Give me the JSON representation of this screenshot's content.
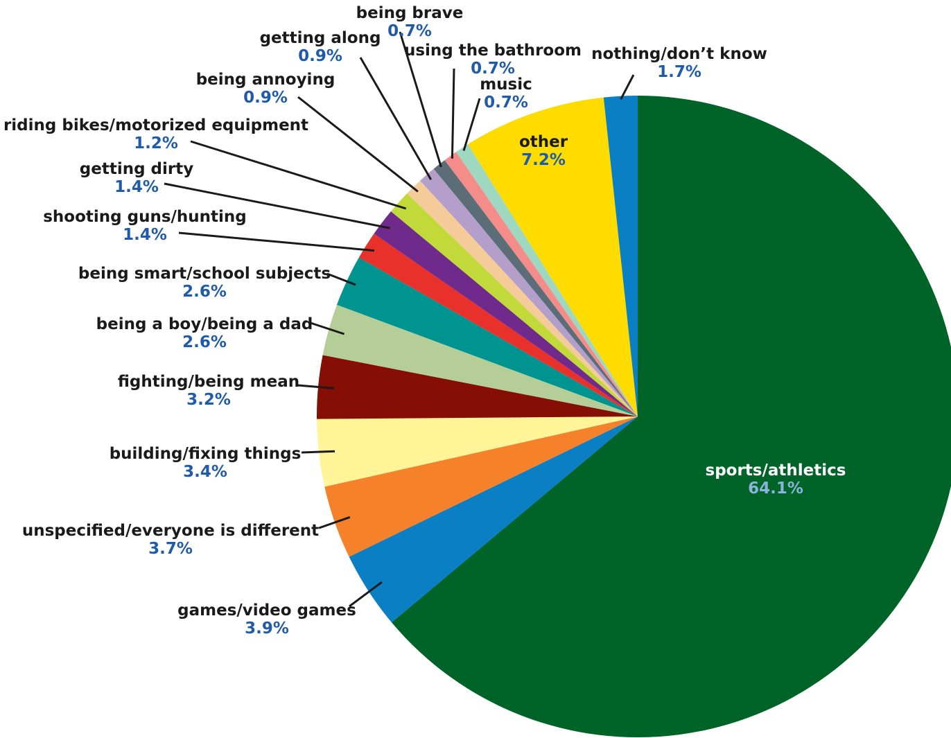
{
  "chart_data": {
    "type": "pie",
    "title": "",
    "start": "12 o'clock",
    "direction": "clockwise",
    "slices": [
      {
        "label": "sports/athletics",
        "value": 64.1,
        "value_label": "64.1%",
        "color": "#006328",
        "label_placement": "inside"
      },
      {
        "label": "games/video games",
        "value": 3.9,
        "value_label": "3.9%",
        "color": "#0a7fc4",
        "label_placement": "outside"
      },
      {
        "label": "unspecified/everyone is different",
        "value": 3.7,
        "value_label": "3.7%",
        "color": "#f5822a",
        "label_placement": "outside"
      },
      {
        "label": "building/fixing things",
        "value": 3.4,
        "value_label": "3.4%",
        "color": "#fff598",
        "label_placement": "outside"
      },
      {
        "label": "fighting/being mean",
        "value": 3.2,
        "value_label": "3.2%",
        "color": "#860f05",
        "label_placement": "outside"
      },
      {
        "label": "being a boy/being a dad",
        "value": 2.6,
        "value_label": "2.6%",
        "color": "#b5ce98",
        "label_placement": "outside"
      },
      {
        "label": "being smart/school subjects",
        "value": 2.6,
        "value_label": "2.6%",
        "color": "#009490",
        "label_placement": "outside"
      },
      {
        "label": "shooting guns/hunting",
        "value": 1.4,
        "value_label": "1.4%",
        "color": "#e8312a",
        "label_placement": "outside"
      },
      {
        "label": "getting dirty",
        "value": 1.4,
        "value_label": "1.4%",
        "color": "#6f2a8b",
        "label_placement": "outside"
      },
      {
        "label": "riding bikes/motorized equipment",
        "value": 1.2,
        "value_label": "1.2%",
        "color": "#c2d93a",
        "label_placement": "outside"
      },
      {
        "label": "being annoying",
        "value": 0.9,
        "value_label": "0.9%",
        "color": "#f5cc99",
        "label_placement": "outside"
      },
      {
        "label": "getting along",
        "value": 0.9,
        "value_label": "0.9%",
        "color": "#b49fcb",
        "label_placement": "outside"
      },
      {
        "label": "being brave",
        "value": 0.7,
        "value_label": "0.7%",
        "color": "#5b6d77",
        "label_placement": "outside"
      },
      {
        "label": "using the bathroom",
        "value": 0.7,
        "value_label": "0.7%",
        "color": "#f48d89",
        "label_placement": "outside"
      },
      {
        "label": "music",
        "value": 0.7,
        "value_label": "0.7%",
        "color": "#9fd8c1",
        "label_placement": "outside"
      },
      {
        "label": "other",
        "value": 7.2,
        "value_label": "7.2%",
        "color": "#fedc00",
        "label_placement": "inside"
      },
      {
        "label": "nothing/don’t know",
        "value": 1.7,
        "value_label": "1.7%",
        "color": "#0a7fc4",
        "label_placement": "outside"
      }
    ]
  }
}
